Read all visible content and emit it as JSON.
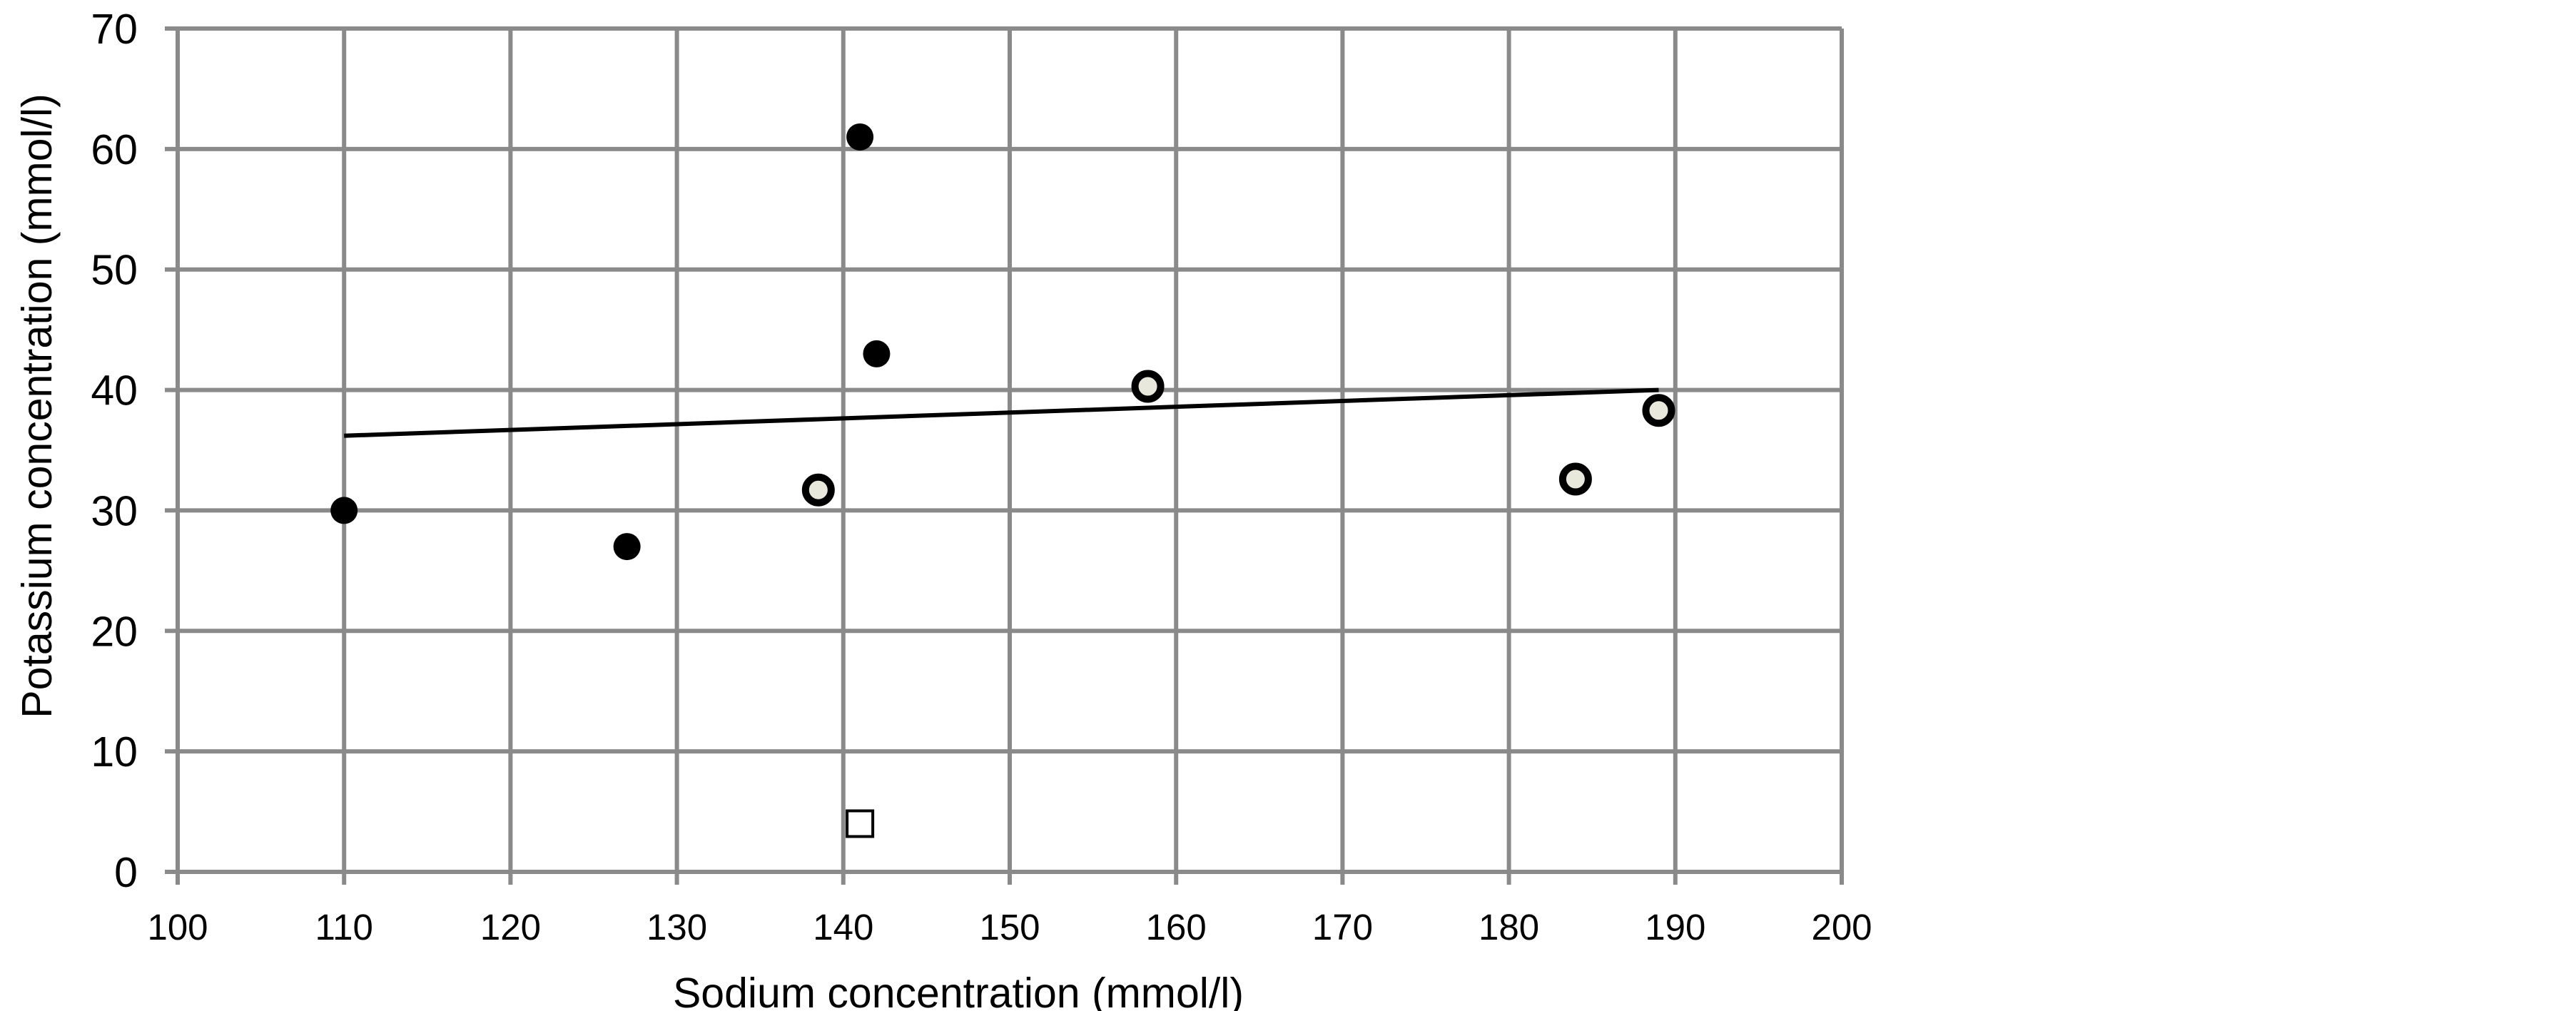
{
  "chart_data": {
    "type": "scatter",
    "title": "",
    "xlabel": "Sodium concentration (mmol/l)",
    "ylabel": "Potassium concentration (mmol/l)",
    "xlim": [
      100,
      200
    ],
    "ylim": [
      0,
      70
    ],
    "x_ticks": [
      100,
      110,
      120,
      130,
      140,
      150,
      160,
      170,
      180,
      190,
      200
    ],
    "y_ticks": [
      0,
      10,
      20,
      30,
      40,
      50,
      60,
      70
    ],
    "grid": true,
    "legend": "none",
    "series": [
      {
        "marker": "filled-circle",
        "color": "#000000",
        "points": [
          {
            "x": 110,
            "y": 30
          },
          {
            "x": 127,
            "y": 27
          },
          {
            "x": 141,
            "y": 61
          },
          {
            "x": 142,
            "y": 43
          }
        ]
      },
      {
        "marker": "ring-circle",
        "color": "#e8e8dc",
        "points": [
          {
            "x": 138.5,
            "y": 31.7
          },
          {
            "x": 158.3,
            "y": 40.3
          },
          {
            "x": 184,
            "y": 32.6
          },
          {
            "x": 189,
            "y": 38.3
          }
        ]
      },
      {
        "marker": "open-square",
        "color": "#ffffff",
        "points": [
          {
            "x": 141,
            "y": 4
          }
        ]
      }
    ],
    "trendline": {
      "type": "linear",
      "color": "#000000",
      "points": [
        {
          "x": 110,
          "y": 36.2
        },
        {
          "x": 189,
          "y": 40
        }
      ]
    }
  }
}
